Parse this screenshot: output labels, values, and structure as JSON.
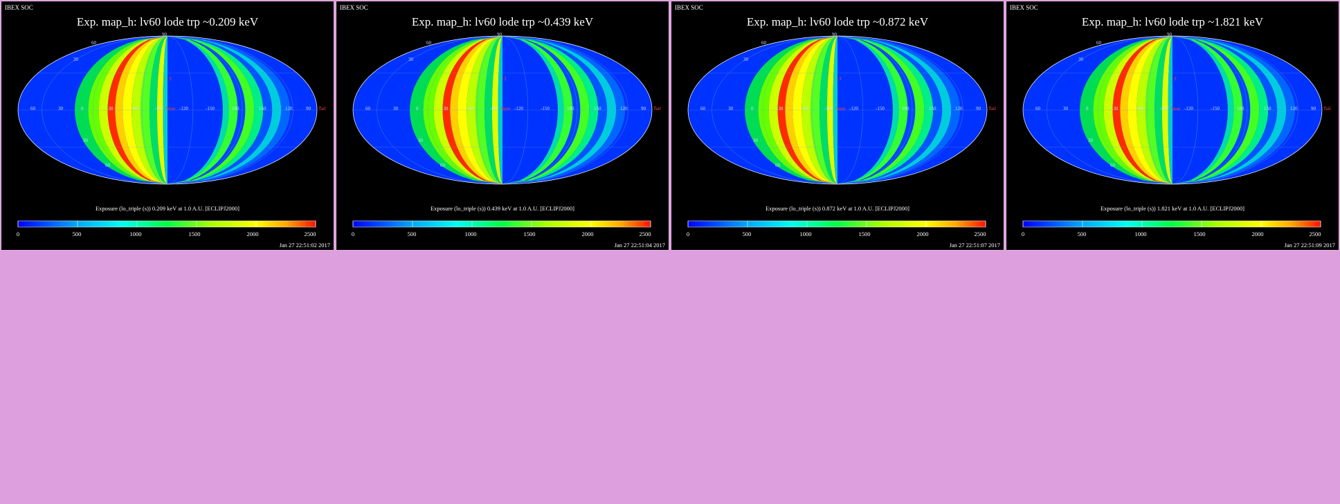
{
  "chart_data": [
    {
      "type": "heatmap",
      "corner_label": "IBEX SOC",
      "title": "Exp.   map_h: lv60 lode trp ~0.209 keV",
      "colorbar_label": "Exposure (lo_triple (s))  0.209 keV at 1.0 A.U. [ECLIPJ2000]",
      "timestamp": "Jan 27 22:51:02 2017",
      "colorbar": {
        "min": 0,
        "max": 2500,
        "ticks": [
          "0",
          "500",
          "1000",
          "1500",
          "2000",
          "2500"
        ]
      },
      "lon_labels": [
        "60",
        "30",
        "0",
        "-30",
        "-60",
        "-90",
        "-120",
        "-150",
        "180",
        "150",
        "120",
        "90"
      ],
      "lat_labels": [
        "30",
        "60",
        "90",
        "30",
        "60"
      ],
      "markers": [
        "+3",
        "Nose",
        "Tail"
      ]
    },
    {
      "type": "heatmap",
      "corner_label": "IBEX SOC",
      "title": "Exp.   map_h: lv60 lode trp ~0.439 keV",
      "colorbar_label": "Exposure (lo_triple (s))  0.439 keV at 1.0 A.U. [ECLIPJ2000]",
      "timestamp": "Jan 27 22:51:04 2017",
      "colorbar": {
        "min": 0,
        "max": 2500,
        "ticks": [
          "0",
          "500",
          "1000",
          "1500",
          "2000",
          "2500"
        ]
      },
      "lon_labels": [
        "60",
        "30",
        "0",
        "-30",
        "-60",
        "-90",
        "-120",
        "-150",
        "180",
        "150",
        "120",
        "90"
      ],
      "lat_labels": [
        "30",
        "60",
        "90",
        "30",
        "60"
      ],
      "markers": [
        "+3",
        "Nose",
        "Tail"
      ]
    },
    {
      "type": "heatmap",
      "corner_label": "IBEX SOC",
      "title": "Exp.   map_h: lv60 lode trp ~0.872 keV",
      "colorbar_label": "Exposure (lo_triple (s))  0.872 keV at 1.0 A.U. [ECLIPJ2000]",
      "timestamp": "Jan 27 22:51:07 2017",
      "colorbar": {
        "min": 0,
        "max": 2500,
        "ticks": [
          "0",
          "500",
          "1000",
          "1500",
          "2000",
          "2500"
        ]
      },
      "lon_labels": [
        "60",
        "30",
        "0",
        "-30",
        "-60",
        "-90",
        "-120",
        "-150",
        "180",
        "150",
        "120",
        "90"
      ],
      "lat_labels": [
        "30",
        "60",
        "90",
        "30",
        "60"
      ],
      "markers": [
        "+3",
        "Nose",
        "Tail"
      ]
    },
    {
      "type": "heatmap",
      "corner_label": "IBEX SOC",
      "title": "Exp.   map_h: lv60 lode trp ~1.821 keV",
      "colorbar_label": "Exposure (lo_triple (s))  1.821 keV at 1.0 A.U. [ECLIPJ2000]",
      "timestamp": "Jan 27 22:51:09 2017",
      "colorbar": {
        "min": 0,
        "max": 2500,
        "ticks": [
          "0",
          "500",
          "1000",
          "1500",
          "2000",
          "2500"
        ]
      },
      "lon_labels": [
        "60",
        "30",
        "0",
        "-30",
        "-60",
        "-90",
        "-120",
        "-150",
        "180",
        "150",
        "120",
        "90"
      ],
      "lat_labels": [
        "30",
        "60",
        "90",
        "30",
        "60"
      ],
      "markers": [
        "+3",
        "Nose",
        "Tail"
      ]
    }
  ],
  "colors": {
    "background": "#dd9fdd",
    "panel": "#000000",
    "base_blue": "#0033ff"
  }
}
